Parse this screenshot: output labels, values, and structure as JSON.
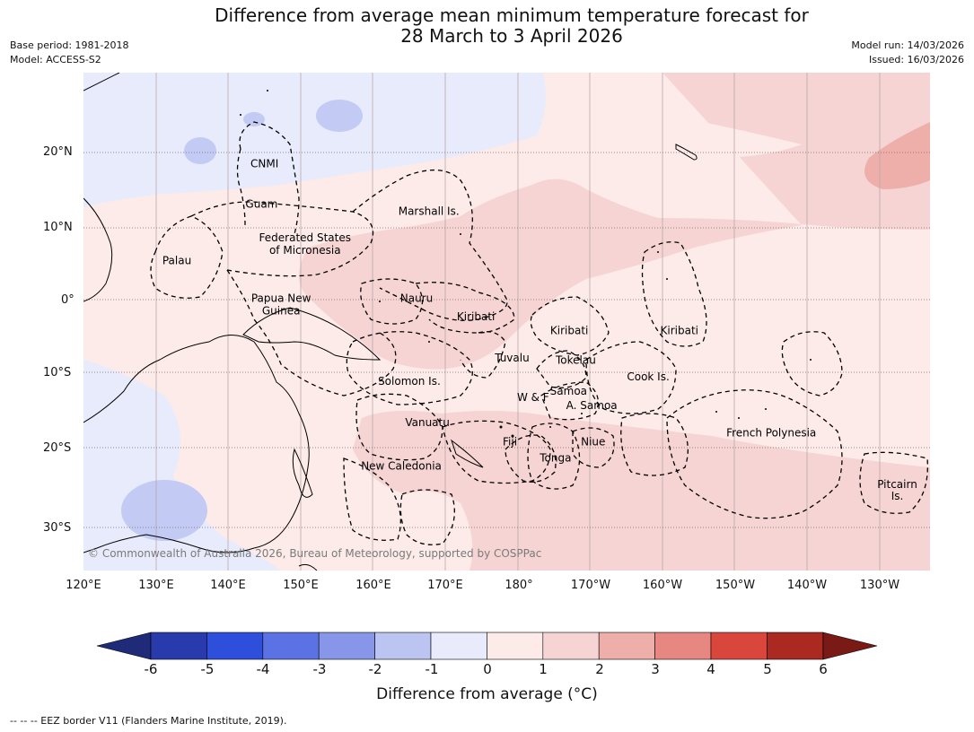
{
  "title_line1": "Difference from average mean minimum temperature forecast for",
  "title_line2": "28 March to 3 April 2026",
  "base_period": "Base period: 1981-2018",
  "model": "Model: ACCESS-S2",
  "model_run": "Model run: 14/03/2026",
  "issued": "Issued: 16/03/2026",
  "lat_labels": [
    "20°N",
    "10°N",
    "0°",
    "10°S",
    "20°S",
    "30°S"
  ],
  "lon_labels": [
    "120°E",
    "130°E",
    "140°E",
    "150°E",
    "160°E",
    "170°E",
    "180°",
    "170°W",
    "160°W",
    "150°W",
    "140°W",
    "130°W"
  ],
  "places": [
    {
      "name": "CNMI",
      "lon": 145.0,
      "lat": 18.0
    },
    {
      "name": "Guam",
      "lon": 144.6,
      "lat": 12.5
    },
    {
      "name": "Marshall Is.",
      "lon": 167.7,
      "lat": 11.5
    },
    {
      "name": "Federated States",
      "lon": 150.6,
      "lat": 7.9
    },
    {
      "name": "of Micronesia",
      "lon": 150.6,
      "lat": 6.2
    },
    {
      "name": "Palau",
      "lon": 132.9,
      "lat": 4.8
    },
    {
      "name": "Papua New",
      "lon": 147.3,
      "lat": -0.3
    },
    {
      "name": "Guinea",
      "lon": 147.3,
      "lat": -2.0
    },
    {
      "name": "Nauru",
      "lon": 166.0,
      "lat": -0.3
    },
    {
      "name": "Kiribati",
      "lon": 174.2,
      "lat": -2.8
    },
    {
      "name": "Kiribati",
      "lon": -172.9,
      "lat": -4.7
    },
    {
      "name": "Kiribati",
      "lon": -157.7,
      "lat": -4.7
    },
    {
      "name": "Tuvalu",
      "lon": 179.2,
      "lat": -8.4
    },
    {
      "name": "Tokelau",
      "lon": -172.0,
      "lat": -8.7
    },
    {
      "name": "Cook Is.",
      "lon": -162.0,
      "lat": -11.0
    },
    {
      "name": "Solomon Is.",
      "lon": 165.0,
      "lat": -11.6
    },
    {
      "name": "Samoa",
      "lon": -173.0,
      "lat": -12.9
    },
    {
      "name": "W & F",
      "lon": -177.9,
      "lat": -13.8
    },
    {
      "name": "A. Samoa",
      "lon": -169.8,
      "lat": -14.9
    },
    {
      "name": "Vanuatu",
      "lon": 167.5,
      "lat": -17.2
    },
    {
      "name": "French Polynesia",
      "lon": -145.0,
      "lat": -18.6
    },
    {
      "name": "Fiji",
      "lon": 178.9,
      "lat": -19.8
    },
    {
      "name": "Niue",
      "lon": -169.6,
      "lat": -19.8
    },
    {
      "name": "Tonga",
      "lon": -174.8,
      "lat": -22.0
    },
    {
      "name": "New Caledonia",
      "lon": 163.9,
      "lat": -23.1
    },
    {
      "name": "Pitcairn",
      "lon": -127.6,
      "lat": -25.6
    },
    {
      "name": "Is.",
      "lon": -127.6,
      "lat": -27.2
    }
  ],
  "copyright": "© Commonwealth of Australia 2026, Bureau of Meteorology, supported by COSPPac",
  "colorbar": {
    "ticks": [
      "-6",
      "-5",
      "-4",
      "-3",
      "-2",
      "-1",
      "0",
      "1",
      "2",
      "3",
      "4",
      "5",
      "6"
    ],
    "colors": [
      "#283aac",
      "#2d4fdc",
      "#5a72e4",
      "#8896ea",
      "#bcc4f2",
      "#e8ebfb",
      "#fcebe9",
      "#f5d4d3",
      "#eeaeaa",
      "#e68782",
      "#d9473c",
      "#aa2a22"
    ],
    "under_color": "#1f2a78",
    "over_color": "#7a1a16",
    "label": "Difference from average (°C)"
  },
  "footer": "--  --  -- EEZ border V11 (Flanders Marine Institute, 2019)."
}
